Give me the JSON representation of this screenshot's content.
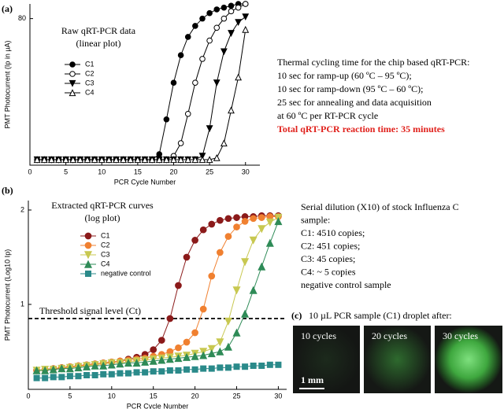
{
  "chart_data": [
    {
      "type": "line",
      "panel_label": "(a)",
      "title": "Raw qRT-PCR data",
      "subtitle": "(linear plot)",
      "x_label": "PCR Cycle Number",
      "y_label": "PMT Photocurrent (Ip in µA)",
      "x": [
        1,
        2,
        3,
        4,
        5,
        6,
        7,
        8,
        9,
        10,
        11,
        12,
        13,
        14,
        15,
        16,
        17,
        18,
        19,
        20,
        21,
        22,
        23,
        24,
        25,
        26,
        27,
        28,
        29,
        30
      ],
      "xlim": [
        0,
        32
      ],
      "xticks": [
        0,
        5,
        10,
        15,
        20,
        25,
        30
      ],
      "ylim": [
        0,
        88
      ],
      "yticks": [
        80
      ],
      "series": [
        {
          "name": "C1",
          "color": "#000000",
          "marker": "circle",
          "values": [
            3,
            3,
            3,
            3,
            3,
            3,
            3,
            3,
            3,
            3,
            3,
            3,
            3,
            3,
            3,
            3,
            3,
            6,
            25,
            45,
            60,
            70,
            76,
            80,
            83,
            85,
            86,
            87,
            88,
            88
          ]
        },
        {
          "name": "C2",
          "color": "#000000",
          "marker": "circle-open",
          "values": [
            3,
            3,
            3,
            3,
            3,
            3,
            3,
            3,
            3,
            3,
            3,
            3,
            3,
            3,
            3,
            3,
            3,
            3,
            3,
            5,
            12,
            28,
            45,
            58,
            68,
            75,
            80,
            84,
            86,
            88
          ]
        },
        {
          "name": "C3",
          "color": "#000000",
          "marker": "triangle-down",
          "values": [
            3,
            3,
            3,
            3,
            3,
            3,
            3,
            3,
            3,
            3,
            3,
            3,
            3,
            3,
            3,
            3,
            3,
            3,
            3,
            3,
            3,
            3,
            3,
            5,
            20,
            45,
            62,
            72,
            78,
            81
          ]
        },
        {
          "name": "C4",
          "color": "#000000",
          "marker": "triangle-up-open",
          "values": [
            3,
            3,
            3,
            3,
            3,
            3,
            3,
            3,
            3,
            3,
            3,
            3,
            3,
            3,
            3,
            3,
            3,
            3,
            3,
            3,
            3,
            3,
            3,
            3,
            3,
            4,
            12,
            30,
            48,
            74
          ]
        }
      ],
      "notes": [
        "Thermal cycling time for the chip based qRT-PCR:",
        "10 sec for ramp-up (60 ºC – 95 ºC);",
        "10 sec for ramp-down (95 ºC – 60 ºC);",
        "25 sec for annealing and data acquisition",
        "at 60 ºC per RT-PCR cycle"
      ],
      "highlight": "Total qRT-PCR reaction time: 35 minutes"
    },
    {
      "type": "line",
      "panel_label": "(b)",
      "title": "Extracted qRT-PCR curves",
      "subtitle": "(log plot)",
      "x_label": "PCR Cycle Number",
      "y_label": "PMT Photocurrent (Log10 Ip)",
      "x": [
        1,
        2,
        3,
        4,
        5,
        6,
        7,
        8,
        9,
        10,
        11,
        12,
        13,
        14,
        15,
        16,
        17,
        18,
        19,
        20,
        21,
        22,
        23,
        24,
        25,
        26,
        27,
        28,
        29,
        30
      ],
      "xlim": [
        0,
        31
      ],
      "xticks": [
        0,
        5,
        10,
        15,
        20,
        25,
        30
      ],
      "ylim": [
        0.1,
        2.1
      ],
      "yticks": [
        1,
        2
      ],
      "threshold": 0.85,
      "threshold_label": "Threshold signal level (Ct)",
      "series": [
        {
          "name": "C1",
          "color": "#8b1a1a",
          "marker": "circle",
          "values": [
            0.3,
            0.31,
            0.32,
            0.33,
            0.34,
            0.35,
            0.36,
            0.37,
            0.38,
            0.39,
            0.4,
            0.42,
            0.44,
            0.47,
            0.52,
            0.62,
            0.85,
            1.2,
            1.5,
            1.68,
            1.79,
            1.85,
            1.89,
            1.91,
            1.92,
            1.93,
            1.93,
            1.94,
            1.94,
            1.94
          ]
        },
        {
          "name": "C2",
          "color": "#f08030",
          "marker": "circle",
          "values": [
            0.3,
            0.31,
            0.32,
            0.33,
            0.34,
            0.35,
            0.36,
            0.37,
            0.38,
            0.39,
            0.4,
            0.41,
            0.42,
            0.43,
            0.45,
            0.47,
            0.5,
            0.54,
            0.6,
            0.7,
            0.95,
            1.3,
            1.55,
            1.72,
            1.82,
            1.88,
            1.91,
            1.92,
            1.93,
            1.93
          ]
        },
        {
          "name": "C3",
          "color": "#c8c850",
          "marker": "triangle-down",
          "values": [
            0.3,
            0.31,
            0.31,
            0.32,
            0.33,
            0.34,
            0.35,
            0.36,
            0.37,
            0.38,
            0.38,
            0.39,
            0.4,
            0.41,
            0.42,
            0.43,
            0.44,
            0.45,
            0.46,
            0.48,
            0.5,
            0.53,
            0.6,
            0.82,
            1.15,
            1.45,
            1.68,
            1.8,
            1.87,
            1.92
          ]
        },
        {
          "name": "C4",
          "color": "#2e8b57",
          "marker": "triangle-up",
          "values": [
            0.3,
            0.3,
            0.31,
            0.32,
            0.32,
            0.33,
            0.34,
            0.35,
            0.35,
            0.36,
            0.37,
            0.38,
            0.38,
            0.39,
            0.4,
            0.41,
            0.42,
            0.43,
            0.44,
            0.45,
            0.46,
            0.48,
            0.5,
            0.55,
            0.7,
            0.9,
            1.15,
            1.4,
            1.65,
            1.88
          ]
        },
        {
          "name": "negative control",
          "color": "#2a8a8a",
          "marker": "square",
          "values": [
            0.22,
            0.22,
            0.23,
            0.23,
            0.24,
            0.24,
            0.25,
            0.25,
            0.26,
            0.26,
            0.27,
            0.27,
            0.28,
            0.28,
            0.29,
            0.29,
            0.3,
            0.3,
            0.31,
            0.31,
            0.32,
            0.32,
            0.33,
            0.33,
            0.34,
            0.34,
            0.35,
            0.35,
            0.36,
            0.36
          ]
        }
      ],
      "notes": [
        "Serial dilution (X10) of stock Influenza C",
        "sample:",
        "C1: 4510 copies;",
        "C2: 451 copies;",
        "C3: 45 copies;",
        "C4: ~ 5 copies",
        "negative control sample"
      ]
    }
  ],
  "panel_c": {
    "label": "(c)",
    "title": "10 µL PCR sample (C1) droplet after:",
    "images": [
      "10  cycles",
      "20  cycles",
      "30  cycles"
    ],
    "scale": "1 mm"
  }
}
